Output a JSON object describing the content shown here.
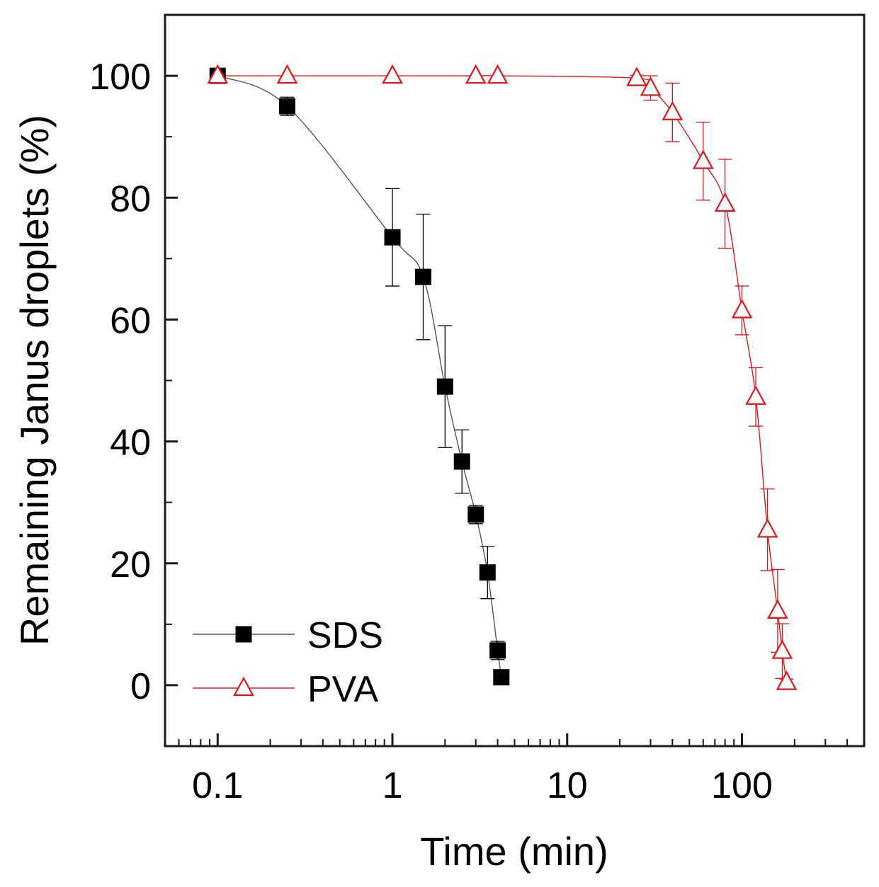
{
  "chart_data": {
    "type": "scatter",
    "title": "",
    "xlabel": "Time (min)",
    "ylabel": "Remaining Janus droplets (%)",
    "xscale": "log",
    "xlim": [
      0.05,
      500
    ],
    "ylim": [
      -10,
      110
    ],
    "xticks": [
      {
        "value": 0.1,
        "label": "0.1"
      },
      {
        "value": 1,
        "label": "1"
      },
      {
        "value": 10,
        "label": "10"
      },
      {
        "value": 100,
        "label": "100"
      }
    ],
    "yticks": [
      {
        "value": 0,
        "label": "0"
      },
      {
        "value": 20,
        "label": "20"
      },
      {
        "value": 40,
        "label": "40"
      },
      {
        "value": 60,
        "label": "60"
      },
      {
        "value": 80,
        "label": "80"
      },
      {
        "value": 100,
        "label": "100"
      }
    ],
    "legend_position": "bottom-left",
    "series": [
      {
        "name": "SDS",
        "marker": "filled-square",
        "color": "#000000",
        "line_color": "#555555",
        "x": [
          0.1,
          0.25,
          1,
          1.5,
          2,
          2.5,
          3,
          3.5,
          4,
          4.2
        ],
        "y": [
          100,
          95,
          73.5,
          67,
          49,
          36.7,
          28,
          18.5,
          5.7,
          1.3
        ],
        "err": [
          0,
          1.5,
          8,
          10.3,
          10,
          5.2,
          1.5,
          4.3,
          1.5,
          0
        ]
      },
      {
        "name": "PVA",
        "marker": "open-triangle",
        "color": "#e8141c",
        "line_color": "#e8141c",
        "x": [
          0.1,
          0.25,
          1,
          3,
          4,
          25,
          30,
          40,
          60,
          80,
          100,
          120,
          140,
          160,
          170,
          180
        ],
        "y": [
          100,
          100,
          100,
          100,
          100,
          99.6,
          98,
          94,
          86,
          79,
          61.5,
          47.3,
          25.5,
          12.2,
          5.6,
          0.5
        ],
        "err": [
          0,
          0,
          0,
          0,
          0,
          0.5,
          2,
          4.8,
          6.4,
          7.3,
          4,
          4.8,
          6.7,
          6.8,
          4.5,
          0.5
        ]
      }
    ]
  }
}
